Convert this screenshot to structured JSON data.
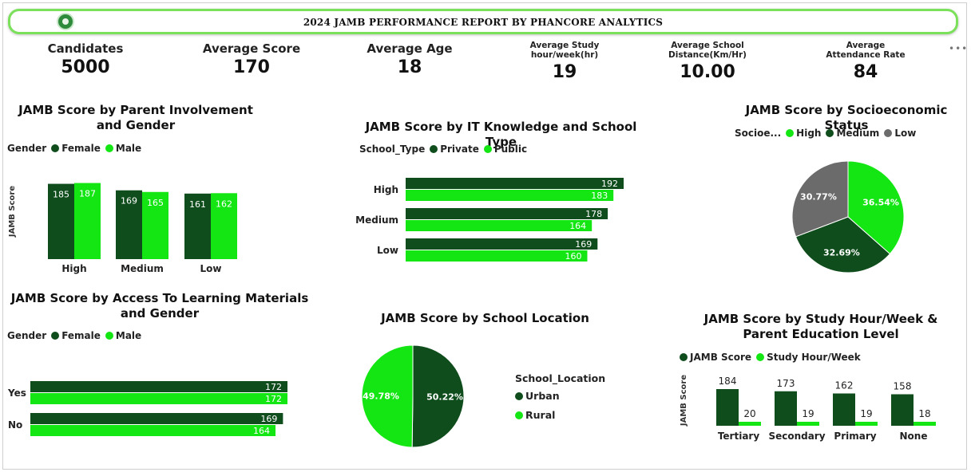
{
  "header": {
    "title": "2024 JAMB PERFORMANCE REPORT BY PHANCORE ANALYTICS"
  },
  "colors": {
    "dark_green": "#0f4d1c",
    "bright_green": "#14e614",
    "gray": "#6b6b6b"
  },
  "kpis": [
    {
      "label": "Candidates",
      "value": "5000"
    },
    {
      "label": "Average Score",
      "value": "170"
    },
    {
      "label": "Average Age",
      "value": "18"
    },
    {
      "label": "Average Study hour/week(hr)",
      "value": "19"
    },
    {
      "label": "Average School Distance(Km/Hr)",
      "value": "10.00"
    },
    {
      "label": "Average Attendance Rate",
      "value": "84"
    }
  ],
  "chart_data": [
    {
      "type": "bar",
      "title": "JAMB Score by Parent Involvement and Gender",
      "legend_title": "Gender",
      "ylabel": "JAMB Score",
      "categories": [
        "High",
        "Medium",
        "Low"
      ],
      "series": [
        {
          "name": "Female",
          "values": [
            185,
            169,
            161
          ]
        },
        {
          "name": "Male",
          "values": [
            187,
            165,
            162
          ]
        }
      ]
    },
    {
      "type": "bar",
      "orientation": "horizontal",
      "title": "JAMB Score by IT Knowledge and School Type",
      "legend_title": "School_Type",
      "categories": [
        "High",
        "Medium",
        "Low"
      ],
      "series": [
        {
          "name": "Private",
          "values": [
            192,
            178,
            169
          ]
        },
        {
          "name": "Public",
          "values": [
            183,
            164,
            160
          ]
        }
      ]
    },
    {
      "type": "pie",
      "title": "JAMB Score by Socioeconomic Status",
      "legend_title": "Socioe...",
      "labels": [
        "High",
        "Medium",
        "Low"
      ],
      "values": [
        36.54,
        32.69,
        30.77
      ],
      "value_labels": [
        "36.54%",
        "32.69%",
        "30.77%"
      ]
    },
    {
      "type": "bar",
      "orientation": "horizontal",
      "title": "JAMB Score by Access To Learning Materials and Gender",
      "legend_title": "Gender",
      "categories": [
        "Yes",
        "No"
      ],
      "series": [
        {
          "name": "Female",
          "values": [
            172,
            169
          ]
        },
        {
          "name": "Male",
          "values": [
            172,
            164
          ]
        }
      ]
    },
    {
      "type": "pie",
      "title": "JAMB Score by School Location",
      "legend_title": "School_Location",
      "labels": [
        "Urban",
        "Rural"
      ],
      "values": [
        50.22,
        49.78
      ],
      "value_labels": [
        "50.22%",
        "49.78%"
      ]
    },
    {
      "type": "bar",
      "title": "JAMB Score by Study Hour/Week & Parent Education Level",
      "ylabel": "JAMB Score",
      "categories": [
        "Tertiary",
        "Secondary",
        "Primary",
        "None"
      ],
      "series": [
        {
          "name": "JAMB Score",
          "values": [
            184,
            173,
            162,
            158
          ]
        },
        {
          "name": "Study Hour/Week",
          "values": [
            20,
            19,
            19,
            18
          ]
        }
      ]
    }
  ]
}
